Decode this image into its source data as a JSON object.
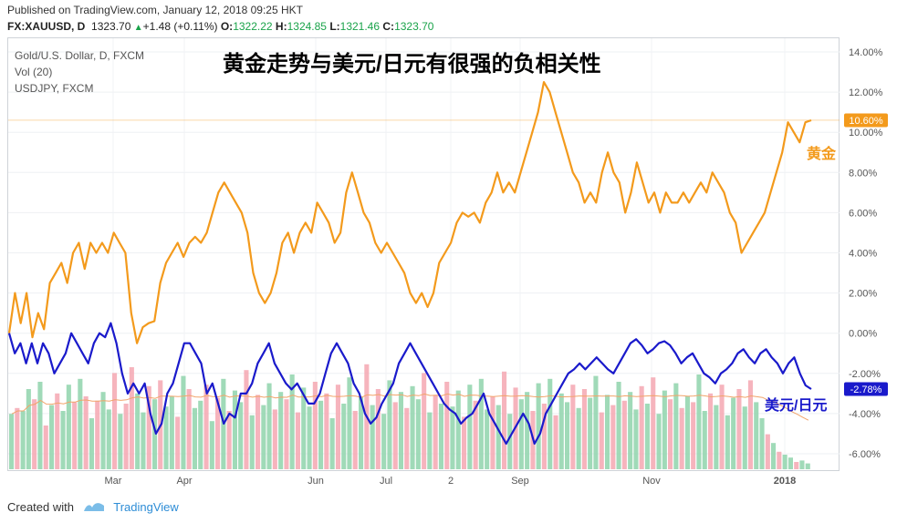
{
  "header": {
    "published": "Published on TradingView.com, January 12, 2018 09:25 HKT",
    "symbol": "FX:XAUUSD, D",
    "last": "1323.70",
    "change": "+1.48 (+0.11%)",
    "o_label": "O:",
    "o": "1322.22",
    "h_label": "H:",
    "h": "1324.85",
    "l_label": "L:",
    "l": "1321.46",
    "c_label": "C:",
    "c": "1323.70"
  },
  "legend": {
    "main": "Gold/U.S. Dollar, D, FXCM",
    "vol": "Vol (20)",
    "compare": "USDJPY, FXCM"
  },
  "title": "黄金走势与美元/日元有很强的负相关性",
  "annotations": {
    "gold": "黄金",
    "usdjpy": "美元/日元"
  },
  "footer": {
    "created": "Created with",
    "brand": "TradingView"
  },
  "colors": {
    "gold": "#f39a1c",
    "usdjpy": "#1a1acb",
    "vol_up": "#8fd4ac",
    "vol_down": "#f4a7b2",
    "vol_ma": "#f2a46a"
  },
  "chart_data": {
    "type": "line",
    "x_tick_labels": [
      "Mar",
      "Apr",
      "Jun",
      "Jul",
      "2",
      "Sep",
      "Nov",
      "2018"
    ],
    "y_tick_labels": [
      "14.00%",
      "12.00%",
      "10.00%",
      "8.00%",
      "6.00%",
      "4.00%",
      "2.00%",
      "0.00%",
      "-2.00%",
      "-4.00%",
      "-6.00%"
    ],
    "ylim": [
      -6.8,
      14.6
    ],
    "y_unit": "%",
    "series": [
      {
        "name": "黄金",
        "last_label": "10.60%",
        "values": [
          0.0,
          2.0,
          0.5,
          2.0,
          -0.2,
          1.0,
          0.2,
          2.5,
          3.0,
          3.5,
          2.5,
          4.0,
          4.5,
          3.2,
          4.5,
          4.0,
          4.5,
          4.0,
          5.0,
          4.5,
          4.0,
          1.0,
          -0.5,
          0.3,
          0.5,
          0.6,
          2.5,
          3.5,
          4.0,
          4.5,
          3.8,
          4.5,
          4.8,
          4.5,
          5.0,
          6.0,
          7.0,
          7.5,
          7.0,
          6.5,
          6.0,
          5.0,
          3.0,
          2.0,
          1.5,
          2.0,
          3.0,
          4.5,
          5.0,
          4.0,
          5.0,
          5.5,
          5.0,
          6.5,
          6.0,
          5.5,
          4.5,
          5.0,
          7.0,
          8.0,
          7.0,
          6.0,
          5.5,
          4.5,
          4.0,
          4.5,
          4.0,
          3.5,
          3.0,
          2.0,
          1.5,
          2.0,
          1.3,
          2.0,
          3.5,
          4.0,
          4.5,
          5.5,
          6.0,
          5.8,
          6.0,
          5.5,
          6.5,
          7.0,
          8.0,
          7.0,
          7.5,
          7.0,
          8.0,
          9.0,
          10.0,
          11.0,
          12.5,
          12.0,
          11.0,
          10.0,
          9.0,
          8.0,
          7.5,
          6.5,
          7.0,
          6.5,
          8.0,
          9.0,
          8.0,
          7.5,
          6.0,
          7.0,
          8.5,
          7.5,
          6.5,
          7.0,
          6.0,
          7.0,
          6.5,
          6.5,
          7.0,
          6.5,
          7.0,
          7.5,
          7.0,
          8.0,
          7.5,
          7.0,
          6.0,
          5.5,
          4.0,
          4.5,
          5.0,
          5.5,
          6.0,
          7.0,
          8.0,
          9.0,
          10.5,
          10.0,
          9.5,
          10.5,
          10.6
        ]
      },
      {
        "name": "美元/日元",
        "last_label": "-2.78%",
        "values": [
          0.0,
          -1.0,
          -0.5,
          -1.5,
          -0.5,
          -1.5,
          -0.5,
          -1.0,
          -2.0,
          -1.5,
          -1.0,
          0.0,
          -0.5,
          -1.0,
          -1.5,
          -0.5,
          0.0,
          -0.2,
          0.5,
          -0.5,
          -2.0,
          -3.0,
          -2.5,
          -3.0,
          -2.5,
          -4.0,
          -5.0,
          -4.5,
          -3.0,
          -2.5,
          -1.5,
          -0.5,
          -0.5,
          -1.0,
          -1.5,
          -3.0,
          -2.5,
          -3.5,
          -4.5,
          -4.0,
          -4.2,
          -3.0,
          -3.0,
          -2.5,
          -1.5,
          -1.0,
          -0.5,
          -1.5,
          -2.0,
          -2.5,
          -2.8,
          -2.5,
          -3.0,
          -3.5,
          -3.5,
          -3.0,
          -2.0,
          -1.0,
          -0.5,
          -1.0,
          -1.5,
          -2.5,
          -3.0,
          -4.0,
          -4.5,
          -4.2,
          -3.5,
          -3.0,
          -2.5,
          -1.5,
          -1.0,
          -0.5,
          -1.0,
          -1.5,
          -2.0,
          -2.5,
          -3.0,
          -3.5,
          -3.8,
          -4.0,
          -4.5,
          -4.2,
          -4.0,
          -3.5,
          -3.0,
          -4.0,
          -4.5,
          -5.0,
          -5.5,
          -5.0,
          -4.5,
          -4.0,
          -4.5,
          -5.5,
          -5.0,
          -4.0,
          -3.5,
          -3.0,
          -2.5,
          -2.0,
          -1.8,
          -1.5,
          -1.8,
          -1.5,
          -1.2,
          -1.5,
          -1.8,
          -2.0,
          -1.5,
          -1.0,
          -0.5,
          -0.3,
          -0.6,
          -1.0,
          -0.8,
          -0.5,
          -0.4,
          -0.6,
          -1.0,
          -1.5,
          -1.2,
          -1.0,
          -1.5,
          -2.0,
          -2.2,
          -2.5,
          -2.0,
          -1.8,
          -1.5,
          -1.0,
          -0.8,
          -1.2,
          -1.5,
          -1.0,
          -0.8,
          -1.2,
          -1.5,
          -2.0,
          -1.5,
          -1.2,
          -2.0,
          -2.6,
          -2.78
        ]
      }
    ],
    "volume": {
      "name": "Vol (20)",
      "values": [
        38,
        42,
        40,
        55,
        48,
        60,
        30,
        44,
        52,
        40,
        58,
        46,
        62,
        50,
        35,
        47,
        53,
        41,
        66,
        38,
        45,
        70,
        52,
        39,
        57,
        48,
        61,
        43,
        50,
        36,
        64,
        55,
        42,
        47,
        58,
        33,
        49,
        62,
        40,
        54,
        46,
        68,
        37,
        51,
        44,
        59,
        41,
        53,
        48,
        65,
        39,
        56,
        43,
        60,
        47,
        52,
        35,
        58,
        45,
        63,
        40,
        50,
        72,
        44,
        55,
        38,
        61,
        46,
        53,
        42,
        57,
        48,
        66,
        39,
        51,
        45,
        60,
        43,
        54,
        36,
        58,
        47,
        62,
        41,
        50,
        44,
        67,
        38,
        56,
        48,
        53,
        40,
        59,
        45,
        62,
        37,
        52,
        46,
        58,
        42,
        55,
        49,
        64,
        39,
        51,
        44,
        60,
        47,
        53,
        41,
        57,
        45,
        63,
        38,
        54,
        48,
        59,
        42,
        50,
        46,
        65,
        40,
        52,
        44,
        58,
        37,
        49,
        55,
        43,
        61,
        46,
        35,
        24,
        18,
        12,
        10,
        8,
        5,
        6,
        4
      ],
      "up_down": [
        1,
        0,
        1,
        1,
        0,
        1,
        0,
        1,
        0,
        1,
        1,
        0,
        1,
        0,
        1,
        0,
        1,
        1,
        0,
        1,
        0,
        0,
        1,
        1,
        0,
        1,
        0,
        1,
        1,
        0,
        1,
        0,
        1,
        1,
        0,
        1,
        0,
        1,
        0,
        1,
        1,
        0,
        1,
        0,
        1,
        1,
        0,
        1,
        0,
        1,
        0,
        1,
        1,
        0,
        1,
        0,
        1,
        0,
        1,
        1,
        0,
        1,
        0,
        1,
        0,
        1,
        1,
        0,
        1,
        0,
        1,
        1,
        0,
        1,
        0,
        1,
        0,
        1,
        1,
        0,
        1,
        0,
        1,
        1,
        0,
        1,
        0,
        1,
        0,
        1,
        1,
        0,
        1,
        0,
        1,
        0,
        1,
        1,
        0,
        1,
        0,
        1,
        1,
        0,
        1,
        0,
        1,
        0,
        1,
        1,
        0,
        1,
        0,
        1,
        1,
        0,
        1,
        0,
        1,
        0,
        1,
        1,
        0,
        1,
        0,
        1,
        1,
        0,
        1,
        0,
        1,
        1,
        0,
        1,
        0,
        1,
        1,
        0,
        1,
        1
      ]
    }
  }
}
